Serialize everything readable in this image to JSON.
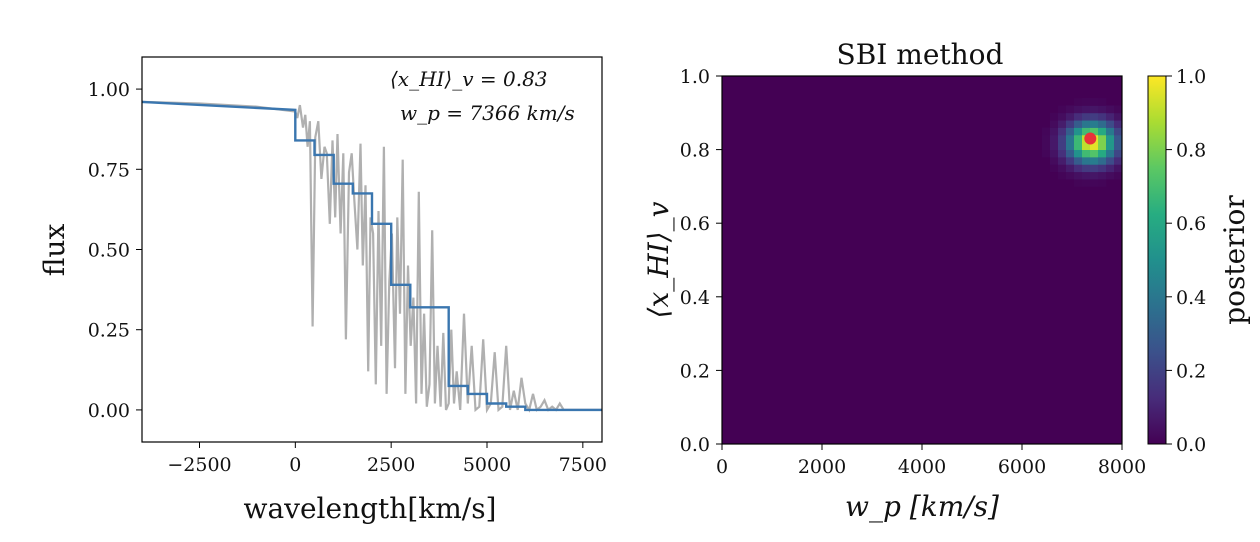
{
  "chart_data": [
    {
      "type": "line",
      "title": "",
      "xlabel": "wavelength[km/s]",
      "ylabel": "flux",
      "xlim": [
        -4000,
        8000
      ],
      "ylim": [
        -0.1,
        1.1
      ],
      "xticks": [
        -2500,
        0,
        2500,
        5000,
        7500
      ],
      "xtick_labels": [
        "−2500",
        "0",
        "2500",
        "5000",
        "7500"
      ],
      "yticks": [
        0.0,
        0.25,
        0.5,
        0.75,
        1.0
      ],
      "ytick_labels": [
        "0.00",
        "0.25",
        "0.50",
        "0.75",
        "1.00"
      ],
      "annotations": [
        "⟨x_HI⟩_v = 0.83",
        "w_p = 7366 km/s"
      ],
      "annotation_values": {
        "xHI": 0.83,
        "wp": 7366
      },
      "series": [
        {
          "color": "#b0b0b0",
          "x": [
            -4000,
            -2500,
            -1000,
            0,
            50,
            120,
            200,
            260,
            320,
            380,
            450,
            520,
            600,
            680,
            760,
            820,
            900,
            970,
            1040,
            1100,
            1180,
            1250,
            1320,
            1400,
            1470,
            1540,
            1620,
            1700,
            1760,
            1830,
            1900,
            1960,
            2030,
            2100,
            2170,
            2240,
            2310,
            2380,
            2450,
            2520,
            2600,
            2660,
            2730,
            2800,
            2870,
            2940,
            3010,
            3080,
            3150,
            3220,
            3290,
            3360,
            3430,
            3500,
            3570,
            3640,
            3710,
            3790,
            3860,
            3930,
            4000,
            4070,
            4140,
            4210,
            4300,
            4400,
            4500,
            4600,
            4700,
            4800,
            4900,
            5000,
            5100,
            5200,
            5300,
            5400,
            5500,
            5600,
            5700,
            5800,
            5900,
            6000,
            6100,
            6200,
            6300,
            6400,
            6500,
            6600,
            6700,
            6800,
            6900,
            7000,
            7200,
            7500,
            8000
          ],
          "y": [
            0.96,
            0.955,
            0.945,
            0.93,
            0.91,
            0.95,
            0.88,
            0.92,
            0.82,
            0.9,
            0.26,
            0.85,
            0.9,
            0.72,
            0.82,
            0.8,
            0.58,
            0.84,
            0.6,
            0.86,
            0.55,
            0.8,
            0.22,
            0.74,
            0.8,
            0.65,
            0.5,
            0.83,
            0.45,
            0.7,
            0.12,
            0.6,
            0.55,
            0.08,
            0.62,
            0.2,
            0.82,
            0.05,
            0.4,
            0.55,
            0.13,
            0.6,
            0.3,
            0.78,
            0.05,
            0.45,
            0.2,
            0.35,
            0.02,
            0.68,
            0.05,
            0.3,
            0.01,
            0.08,
            0.56,
            0.02,
            0.2,
            0.01,
            0.24,
            0.0,
            0.02,
            0.25,
            0.02,
            0.12,
            0.0,
            0.3,
            0.02,
            0.2,
            0.0,
            0.01,
            0.22,
            0.0,
            0.02,
            0.18,
            0.0,
            0.01,
            0.2,
            0.0,
            0.06,
            0.0,
            0.1,
            0.02,
            0.0,
            0.05,
            0.0,
            0.01,
            0.03,
            0.0,
            0.01,
            0.0,
            0.02,
            0.0,
            0.0,
            0.0,
            0.0
          ]
        },
        {
          "color": "#3a76af",
          "x": [
            -4000,
            0,
            0,
            500,
            500,
            1000,
            1000,
            1500,
            1500,
            2000,
            2000,
            2500,
            2500,
            3000,
            3000,
            4000,
            4000,
            4500,
            4500,
            5000,
            5000,
            5500,
            5500,
            6000,
            6000,
            7000,
            7000,
            8000
          ],
          "y": [
            0.96,
            0.935,
            0.84,
            0.84,
            0.795,
            0.795,
            0.705,
            0.705,
            0.675,
            0.675,
            0.58,
            0.58,
            0.39,
            0.39,
            0.32,
            0.32,
            0.075,
            0.075,
            0.05,
            0.05,
            0.02,
            0.02,
            0.01,
            0.01,
            0.0,
            0.0,
            0.0,
            0.0
          ]
        }
      ]
    },
    {
      "type": "heatmap",
      "title": "SBI method",
      "xlabel": "w_p [km/s]",
      "ylabel": "⟨x_HI⟩_v",
      "xlim": [
        0,
        8000
      ],
      "ylim": [
        0.0,
        1.0
      ],
      "xticks": [
        0,
        2000,
        4000,
        6000,
        8000
      ],
      "xtick_labels": [
        "0",
        "2000",
        "4000",
        "6000",
        "8000"
      ],
      "yticks": [
        0.0,
        0.2,
        0.4,
        0.6,
        0.8,
        1.0
      ],
      "ytick_labels": [
        "0.0",
        "0.2",
        "0.4",
        "0.6",
        "0.8",
        "1.0"
      ],
      "grid_size": 50,
      "colormap": "viridis",
      "colorbar": {
        "label": "posterior",
        "range": [
          0.0,
          1.0
        ],
        "ticks": [
          0.0,
          0.2,
          0.4,
          0.6,
          0.8,
          1.0
        ],
        "tick_labels": [
          "0.0",
          "0.2",
          "0.4",
          "0.6",
          "0.8",
          "1.0"
        ]
      },
      "posterior_peak": {
        "wp": 7400,
        "xHI": 0.82,
        "sigma_wp": 330,
        "sigma_xHI": 0.038
      },
      "truth_point": {
        "wp": 7366,
        "xHI": 0.83,
        "color": "#e8323a"
      }
    }
  ]
}
